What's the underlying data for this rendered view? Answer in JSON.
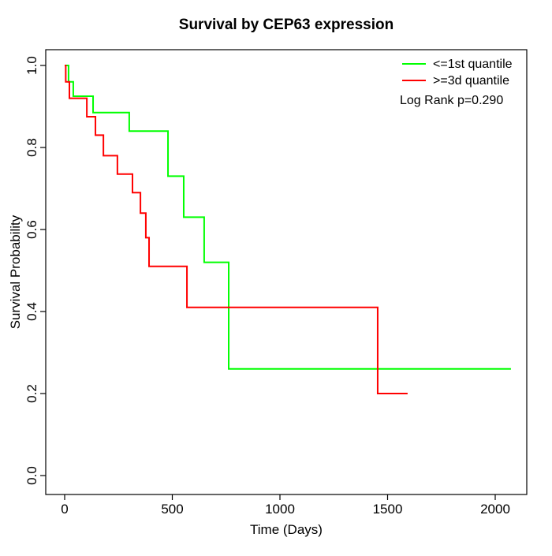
{
  "title": "Survival by CEP63 expression",
  "axes": {
    "x": {
      "label": "Time (Days)",
      "ticks": [
        0,
        500,
        1000,
        1500,
        2000
      ],
      "range": [
        0,
        2000
      ]
    },
    "y": {
      "label": "Survival Probability",
      "ticks": [
        "0.0",
        "0.2",
        "0.4",
        "0.6",
        "0.8",
        "1.0"
      ],
      "range": [
        0,
        1
      ]
    }
  },
  "legend": {
    "items": [
      {
        "label": "<=1st quantile",
        "color": "#00ff00"
      },
      {
        "label": ">=3d quantile",
        "color": "#ff0000"
      }
    ],
    "stat": "Log Rank p=0.290"
  },
  "chart_data": {
    "type": "line",
    "subtype": "kaplan-meier-step-curves",
    "title": "Survival by CEP63 expression",
    "xlabel": "Time (Days)",
    "ylabel": "Survival Probability",
    "xlim": [
      0,
      2150
    ],
    "ylim": [
      0.0,
      1.0
    ],
    "grid": false,
    "legend_position": "top-right",
    "annotation": "Log Rank p=0.290",
    "series": [
      {
        "name": "<=1st quantile",
        "color": "#00ff00",
        "end_time": 2073,
        "steps": [
          [
            0,
            1.0
          ],
          [
            18,
            0.96
          ],
          [
            40,
            0.925
          ],
          [
            132,
            0.885
          ],
          [
            300,
            0.84
          ],
          [
            480,
            0.73
          ],
          [
            553,
            0.63
          ],
          [
            648,
            0.52
          ],
          [
            762,
            0.26
          ]
        ]
      },
      {
        "name": ">=3d quantile",
        "color": "#ff0000",
        "end_time": 1593,
        "steps": [
          [
            0,
            1.0
          ],
          [
            5,
            0.96
          ],
          [
            22,
            0.92
          ],
          [
            103,
            0.875
          ],
          [
            143,
            0.83
          ],
          [
            180,
            0.78
          ],
          [
            245,
            0.735
          ],
          [
            315,
            0.69
          ],
          [
            352,
            0.64
          ],
          [
            377,
            0.58
          ],
          [
            392,
            0.51
          ],
          [
            568,
            0.41
          ],
          [
            1454,
            0.2
          ]
        ]
      }
    ]
  }
}
